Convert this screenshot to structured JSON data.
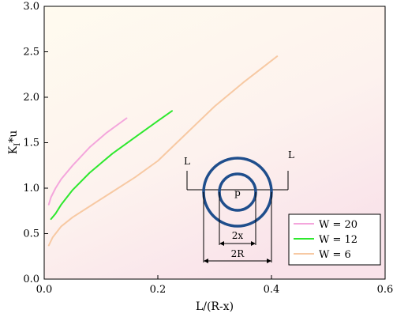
{
  "chart_data": {
    "type": "line",
    "xlabel": "L/(R-x)",
    "ylabel": "K_I*u",
    "ylabel_main": "K",
    "ylabel_sub": "I",
    "ylabel_rest": "*u",
    "xlim": [
      0,
      0.6
    ],
    "ylim": [
      0,
      3.0
    ],
    "x_ticks": [
      "0.0",
      "0.2",
      "0.4",
      "0.6"
    ],
    "y_ticks": [
      "0.0",
      "0.5",
      "1.0",
      "1.5",
      "2.0",
      "2.5",
      "3.0"
    ],
    "grid": false,
    "background": "gradient-cream-to-pink",
    "legend_position": "bottom-right",
    "series": [
      {
        "name": "W = 20",
        "color": "#f4a6dc",
        "x": [
          0.008,
          0.012,
          0.02,
          0.03,
          0.05,
          0.08,
          0.11,
          0.145
        ],
        "y": [
          0.82,
          0.9,
          1.0,
          1.1,
          1.25,
          1.45,
          1.61,
          1.77
        ]
      },
      {
        "name": "W = 12",
        "color": "#2ee82e",
        "x": [
          0.012,
          0.02,
          0.03,
          0.05,
          0.08,
          0.12,
          0.16,
          0.2,
          0.225
        ],
        "y": [
          0.66,
          0.72,
          0.82,
          0.98,
          1.17,
          1.38,
          1.56,
          1.74,
          1.85
        ]
      },
      {
        "name": "W = 6",
        "color": "#f7c9a3",
        "x": [
          0.008,
          0.015,
          0.03,
          0.05,
          0.08,
          0.12,
          0.16,
          0.2,
          0.25,
          0.3,
          0.35,
          0.41
        ],
        "y": [
          0.37,
          0.46,
          0.58,
          0.68,
          0.8,
          0.96,
          1.12,
          1.3,
          1.6,
          1.9,
          2.16,
          2.45
        ]
      }
    ],
    "inset": {
      "left_load_label": "L",
      "right_load_label": "L",
      "center_label": "p",
      "inner_dim_label": "2x",
      "outer_dim_label": "2R",
      "ring_color": "#1f4e8c"
    }
  }
}
